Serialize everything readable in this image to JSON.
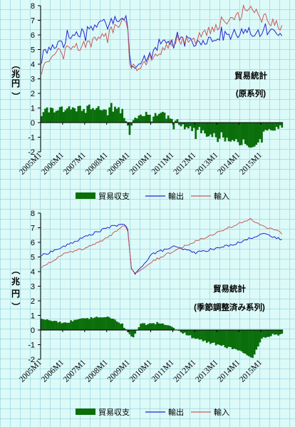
{
  "colors": {
    "balance": "#0a6e0a",
    "exports": "#2323d2",
    "imports": "#c85a5a",
    "axis": "#000000"
  },
  "chart_data": [
    {
      "type": "line",
      "title": "",
      "xlabel": "",
      "ylabel": "（兆円）",
      "ylim": [
        -2,
        8
      ],
      "yticks": [
        "-2",
        "-1",
        "0",
        "1",
        "2",
        "3",
        "4",
        "5",
        "6",
        "7",
        "8"
      ],
      "xticks": [
        "2005M1",
        "2006M1",
        "2007M1",
        "2008M1",
        "2009M1",
        "2010M1",
        "2011M1",
        "2012M1",
        "2013M1",
        "2014M1",
        "2015M1"
      ],
      "annotation": [
        "貿易統計",
        "(原系列)"
      ],
      "legend": [
        "貿易収支",
        "輸出",
        "輸入"
      ],
      "legend_position": "bottom",
      "grid": false,
      "months": 132,
      "series_knots": [
        {
          "name": "輸出",
          "style": "line",
          "noise": 0.38,
          "knots": [
            [
              0,
              4.6
            ],
            [
              10,
              5.6
            ],
            [
              24,
              6.3
            ],
            [
              36,
              7.0
            ],
            [
              45,
              7.3
            ],
            [
              47,
              6.8
            ],
            [
              48,
              5.1
            ],
            [
              49,
              3.8
            ],
            [
              51,
              3.5
            ],
            [
              60,
              5.0
            ],
            [
              66,
              5.5
            ],
            [
              75,
              5.6
            ],
            [
              84,
              5.5
            ],
            [
              96,
              5.9
            ],
            [
              108,
              6.1
            ],
            [
              120,
              6.2
            ],
            [
              131,
              6.2
            ]
          ]
        },
        {
          "name": "輸入",
          "style": "line",
          "noise": 0.3,
          "knots": [
            [
              0,
              3.8
            ],
            [
              10,
              4.9
            ],
            [
              24,
              5.3
            ],
            [
              36,
              6.0
            ],
            [
              45,
              7.2
            ],
            [
              47,
              6.5
            ],
            [
              48,
              4.4
            ],
            [
              50,
              3.6
            ],
            [
              60,
              4.5
            ],
            [
              72,
              5.5
            ],
            [
              84,
              5.8
            ],
            [
              96,
              6.6
            ],
            [
              108,
              7.4
            ],
            [
              115,
              7.8
            ],
            [
              120,
              7.3
            ],
            [
              126,
              6.8
            ],
            [
              131,
              6.5
            ]
          ]
        },
        {
          "name": "貿易収支",
          "style": "bar",
          "noise": 0.22,
          "knots": [
            [
              0,
              0.9
            ],
            [
              12,
              0.9
            ],
            [
              36,
              1.0
            ],
            [
              44,
              0.8
            ],
            [
              48,
              -0.5
            ],
            [
              50,
              0.1
            ],
            [
              54,
              0.5
            ],
            [
              66,
              0.6
            ],
            [
              72,
              0.0
            ],
            [
              84,
              -0.6
            ],
            [
              96,
              -1.0
            ],
            [
              108,
              -1.4
            ],
            [
              115,
              -1.7
            ],
            [
              120,
              -0.8
            ],
            [
              126,
              -0.4
            ],
            [
              131,
              -0.3
            ]
          ]
        }
      ]
    },
    {
      "type": "line",
      "title": "",
      "xlabel": "",
      "ylabel": "（兆円）",
      "ylim": [
        -2,
        8
      ],
      "yticks": [
        "-2",
        "-1",
        "0",
        "1",
        "2",
        "3",
        "4",
        "5",
        "6",
        "7",
        "8"
      ],
      "xticks": [
        "2005M1",
        "2006M1",
        "2007M1",
        "2008M1",
        "2009M1",
        "2010M1",
        "2011M1",
        "2012M1",
        "2013M1",
        "2014M1",
        "2015M1"
      ],
      "annotation": [
        "貿易統計",
        "(季節調整済み系列)"
      ],
      "legend": [
        "貿易収支",
        "輸出",
        "輸入"
      ],
      "legend_position": "bottom",
      "grid": false,
      "months": 132,
      "series_knots": [
        {
          "name": "輸出",
          "style": "line",
          "noise": 0.08,
          "knots": [
            [
              0,
              5.1
            ],
            [
              12,
              5.7
            ],
            [
              24,
              6.4
            ],
            [
              36,
              7.0
            ],
            [
              45,
              7.3
            ],
            [
              47,
              6.8
            ],
            [
              49,
              4.2
            ],
            [
              51,
              3.8
            ],
            [
              60,
              5.2
            ],
            [
              72,
              5.7
            ],
            [
              84,
              5.3
            ],
            [
              96,
              5.6
            ],
            [
              108,
              6.0
            ],
            [
              120,
              6.6
            ],
            [
              125,
              6.4
            ],
            [
              131,
              6.2
            ]
          ]
        },
        {
          "name": "輸入",
          "style": "line",
          "noise": 0.08,
          "knots": [
            [
              0,
              4.3
            ],
            [
              12,
              5.2
            ],
            [
              24,
              5.6
            ],
            [
              36,
              6.3
            ],
            [
              45,
              7.2
            ],
            [
              47,
              6.8
            ],
            [
              49,
              4.2
            ],
            [
              51,
              3.9
            ],
            [
              60,
              4.7
            ],
            [
              72,
              5.4
            ],
            [
              84,
              6.1
            ],
            [
              96,
              6.7
            ],
            [
              108,
              7.3
            ],
            [
              114,
              7.6
            ],
            [
              120,
              7.1
            ],
            [
              126,
              6.9
            ],
            [
              131,
              6.6
            ]
          ]
        },
        {
          "name": "貿易収支",
          "style": "bar",
          "noise": 0.08,
          "knots": [
            [
              0,
              0.8
            ],
            [
              12,
              0.5
            ],
            [
              24,
              0.8
            ],
            [
              36,
              0.9
            ],
            [
              44,
              0.4
            ],
            [
              48,
              -0.3
            ],
            [
              50,
              -0.5
            ],
            [
              54,
              0.4
            ],
            [
              66,
              0.5
            ],
            [
              72,
              0.1
            ],
            [
              84,
              -0.6
            ],
            [
              96,
              -1.0
            ],
            [
              108,
              -1.4
            ],
            [
              115,
              -1.9
            ],
            [
              120,
              -0.6
            ],
            [
              126,
              -0.3
            ],
            [
              131,
              -0.3
            ]
          ]
        }
      ]
    }
  ]
}
